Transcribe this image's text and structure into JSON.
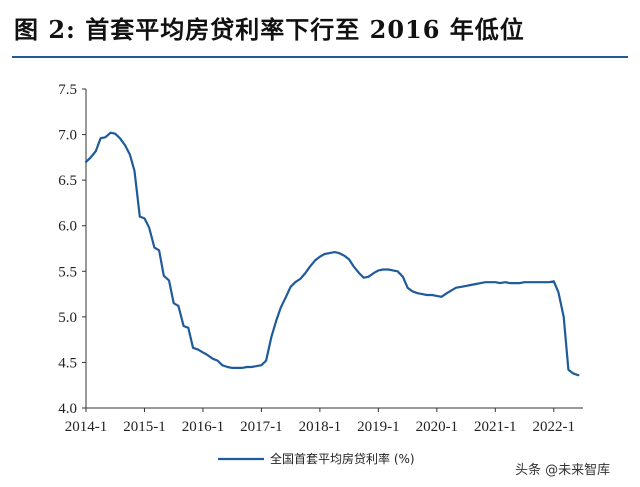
{
  "title": "图  2:  首套平均房贷利率下行至 2016 年低位",
  "watermark": "头条 @未来智库",
  "chart_data": {
    "type": "line",
    "title": "图  2:  首套平均房贷利率下行至 2016 年低位",
    "xlabel": "",
    "ylabel": "",
    "ylim": [
      4.0,
      7.5
    ],
    "yticks": [
      "4.0",
      "4.5",
      "5.0",
      "5.5",
      "6.0",
      "6.5",
      "7.0",
      "7.5"
    ],
    "xlim": [
      2014.0,
      2022.5
    ],
    "xticks": [
      {
        "label": "2014-1",
        "value": 2014.0
      },
      {
        "label": "2015-1",
        "value": 2015.0
      },
      {
        "label": "2016-1",
        "value": 2016.0
      },
      {
        "label": "2017-1",
        "value": 2017.0
      },
      {
        "label": "2018-1",
        "value": 2018.0
      },
      {
        "label": "2019-1",
        "value": 2019.0
      },
      {
        "label": "2020-1",
        "value": 2020.0
      },
      {
        "label": "2021-1",
        "value": 2021.0
      },
      {
        "label": "2022-1",
        "value": 2022.0
      }
    ],
    "grid": false,
    "legend_position": "bottom",
    "series": [
      {
        "name": "全国首套平均房贷利率 (%)",
        "color": "#1f5a9a",
        "x": [
          2014.0,
          2014.08,
          2014.17,
          2014.25,
          2014.33,
          2014.42,
          2014.5,
          2014.58,
          2014.67,
          2014.75,
          2014.83,
          2014.92,
          2015.0,
          2015.08,
          2015.17,
          2015.25,
          2015.33,
          2015.42,
          2015.5,
          2015.58,
          2015.67,
          2015.75,
          2015.83,
          2015.92,
          2016.0,
          2016.08,
          2016.17,
          2016.25,
          2016.33,
          2016.42,
          2016.5,
          2016.58,
          2016.67,
          2016.75,
          2016.83,
          2016.92,
          2017.0,
          2017.08,
          2017.17,
          2017.25,
          2017.33,
          2017.42,
          2017.5,
          2017.58,
          2017.67,
          2017.75,
          2017.83,
          2017.92,
          2018.0,
          2018.08,
          2018.17,
          2018.25,
          2018.33,
          2018.42,
          2018.5,
          2018.58,
          2018.67,
          2018.75,
          2018.83,
          2018.92,
          2019.0,
          2019.08,
          2019.17,
          2019.25,
          2019.33,
          2019.42,
          2019.5,
          2019.58,
          2019.67,
          2019.75,
          2019.83,
          2019.92,
          2020.0,
          2020.08,
          2020.17,
          2020.25,
          2020.33,
          2020.42,
          2020.5,
          2020.58,
          2020.67,
          2020.75,
          2020.83,
          2020.92,
          2021.0,
          2021.08,
          2021.17,
          2021.25,
          2021.33,
          2021.42,
          2021.5,
          2021.58,
          2021.67,
          2021.75,
          2021.83,
          2021.92,
          2022.0,
          2022.08,
          2022.17,
          2022.25,
          2022.33,
          2022.42
        ],
        "values": [
          6.7,
          6.75,
          6.82,
          6.96,
          6.97,
          7.02,
          7.01,
          6.96,
          6.88,
          6.78,
          6.6,
          6.1,
          6.08,
          5.98,
          5.76,
          5.73,
          5.45,
          5.4,
          5.15,
          5.12,
          4.9,
          4.88,
          4.66,
          4.64,
          4.61,
          4.58,
          4.54,
          4.52,
          4.47,
          4.45,
          4.44,
          4.44,
          4.44,
          4.45,
          4.45,
          4.46,
          4.47,
          4.52,
          4.78,
          4.95,
          5.1,
          5.22,
          5.33,
          5.38,
          5.42,
          5.48,
          5.55,
          5.62,
          5.66,
          5.69,
          5.7,
          5.71,
          5.7,
          5.67,
          5.63,
          5.55,
          5.48,
          5.43,
          5.44,
          5.48,
          5.51,
          5.52,
          5.52,
          5.51,
          5.5,
          5.44,
          5.32,
          5.28,
          5.26,
          5.25,
          5.24,
          5.24,
          5.23,
          5.22,
          5.26,
          5.29,
          5.32,
          5.33,
          5.34,
          5.35,
          5.36,
          5.37,
          5.38,
          5.38,
          5.38,
          5.37,
          5.38,
          5.37,
          5.37,
          5.37,
          5.38,
          5.38,
          5.38,
          5.38,
          5.38,
          5.38,
          5.39,
          5.27,
          5.0,
          4.42,
          4.38,
          4.36
        ]
      }
    ]
  }
}
